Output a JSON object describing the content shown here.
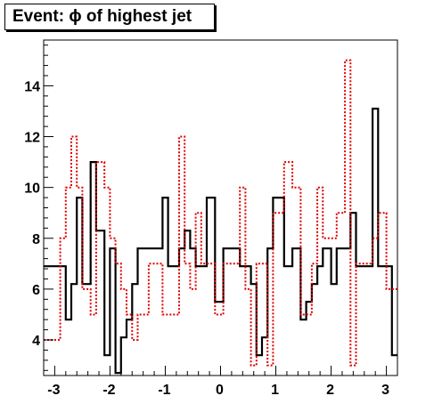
{
  "chart_data": {
    "type": "line",
    "title": "Event: ϕ of highest jet",
    "xlabel": "",
    "ylabel": "",
    "xlim": [
      -3.2,
      3.2
    ],
    "ylim": [
      2.6,
      15.8
    ],
    "grid": false,
    "legend": "none",
    "x_ticks": [
      -3,
      -2,
      -1,
      0,
      1,
      2,
      3
    ],
    "x_tick_labels": [
      "-3",
      "-2",
      "-1",
      "0",
      "1",
      "2",
      "3"
    ],
    "y_ticks": [
      4,
      6,
      8,
      10,
      12,
      14
    ],
    "y_tick_labels": [
      "4",
      "6",
      "8",
      "10",
      "12",
      "14"
    ],
    "bin_edges": [
      -3.2,
      -2.9,
      -2.8,
      -2.7,
      -2.6,
      -2.5,
      -2.35,
      -2.25,
      -2.1,
      -2.0,
      -1.9,
      -1.8,
      -1.7,
      -1.6,
      -1.5,
      -1.3,
      -1.05,
      -0.95,
      -0.75,
      -0.65,
      -0.55,
      -0.45,
      -0.35,
      -0.25,
      -0.1,
      0.05,
      0.2,
      0.35,
      0.45,
      0.55,
      0.65,
      0.75,
      0.85,
      0.95,
      1.15,
      1.3,
      1.45,
      1.55,
      1.65,
      1.75,
      1.85,
      2.0,
      2.1,
      2.25,
      2.35,
      2.45,
      2.6,
      2.75,
      2.85,
      3.0,
      3.1,
      3.2
    ],
    "series": [
      {
        "style": "solid",
        "color": "#000000",
        "values": [
          6.9,
          6.9,
          4.8,
          6.2,
          9.6,
          6.2,
          11.0,
          8.3,
          3.4,
          7.6,
          2.7,
          4.1,
          4.8,
          6.2,
          7.6,
          7.6,
          9.6,
          6.9,
          7.6,
          8.3,
          7.6,
          6.9,
          6.9,
          9.6,
          5.5,
          7.6,
          7.6,
          6.9,
          6.9,
          6.2,
          3.4,
          4.1,
          7.6,
          9.6,
          6.9,
          7.6,
          4.8,
          5.5,
          6.2,
          6.9,
          7.6,
          6.2,
          7.6,
          7.6,
          9.0,
          6.9,
          6.9,
          13.1,
          6.9,
          6.9,
          3.4
        ]
      },
      {
        "style": "dotted",
        "color": "#e00000",
        "values": [
          4.0,
          8.0,
          10.0,
          12.0,
          10.0,
          6.0,
          5.0,
          11.0,
          10.0,
          8.0,
          7.0,
          6.0,
          5.0,
          4.0,
          5.0,
          7.0,
          5.0,
          5.0,
          12.0,
          7.0,
          6.0,
          9.0,
          7.0,
          7.0,
          5.0,
          7.0,
          7.0,
          10.0,
          6.0,
          3.0,
          7.0,
          7.0,
          3.0,
          9.0,
          11.0,
          10.0,
          5.0,
          5.0,
          7.0,
          10.0,
          8.0,
          8.0,
          9.0,
          15.0,
          3.0,
          7.0,
          7.0,
          8.0,
          9.0,
          6.0,
          6.0
        ]
      }
    ]
  }
}
